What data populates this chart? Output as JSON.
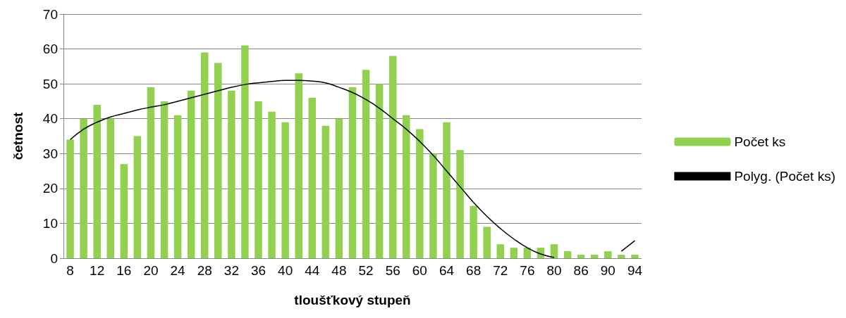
{
  "chart_data": {
    "type": "bar",
    "xlabel": "tloušťkový stupeň",
    "ylabel": "četnost",
    "categories": [
      "8",
      null,
      "12",
      null,
      "16",
      null,
      "20",
      null,
      "24",
      null,
      "28",
      null,
      "32",
      null,
      "36",
      null,
      "40",
      null,
      "44",
      null,
      "48",
      null,
      "52",
      null,
      "56",
      null,
      "60",
      null,
      "64",
      null,
      "68",
      null,
      "72",
      null,
      "76",
      null,
      "80",
      null,
      "86",
      null,
      "90",
      null,
      "94"
    ],
    "series": [
      {
        "name": "Počet ks",
        "color": "#92d050",
        "values": [
          34,
          40,
          44,
          40,
          27,
          35,
          49,
          45,
          41,
          48,
          59,
          56,
          48,
          61,
          45,
          42,
          39,
          53,
          46,
          38,
          40,
          49,
          54,
          50,
          58,
          41,
          37,
          30,
          39,
          31,
          15,
          9,
          4,
          3,
          3,
          3,
          4,
          2,
          1,
          1,
          2,
          1,
          1
        ]
      },
      {
        "name": "Polyg. (Počet ks)",
        "type": "line",
        "color": "#000000",
        "values": [
          34,
          37,
          39,
          40.5,
          41.5,
          42.5,
          43.3,
          44,
          45,
          46,
          47,
          48,
          49,
          49.8,
          50.3,
          50.7,
          51,
          51,
          50.8,
          50.3,
          49,
          47.5,
          45.5,
          43,
          40,
          37,
          33.5,
          29.5,
          25,
          20.5,
          16,
          12,
          8.5,
          5.5,
          3,
          1.2,
          0.2,
          null,
          null,
          null,
          null,
          2,
          5
        ]
      }
    ],
    "ylim": [
      0,
      70
    ],
    "yticks": [
      0,
      10,
      20,
      30,
      40,
      50,
      60,
      70
    ],
    "grid": "y",
    "legend": "right",
    "marker": "none"
  }
}
